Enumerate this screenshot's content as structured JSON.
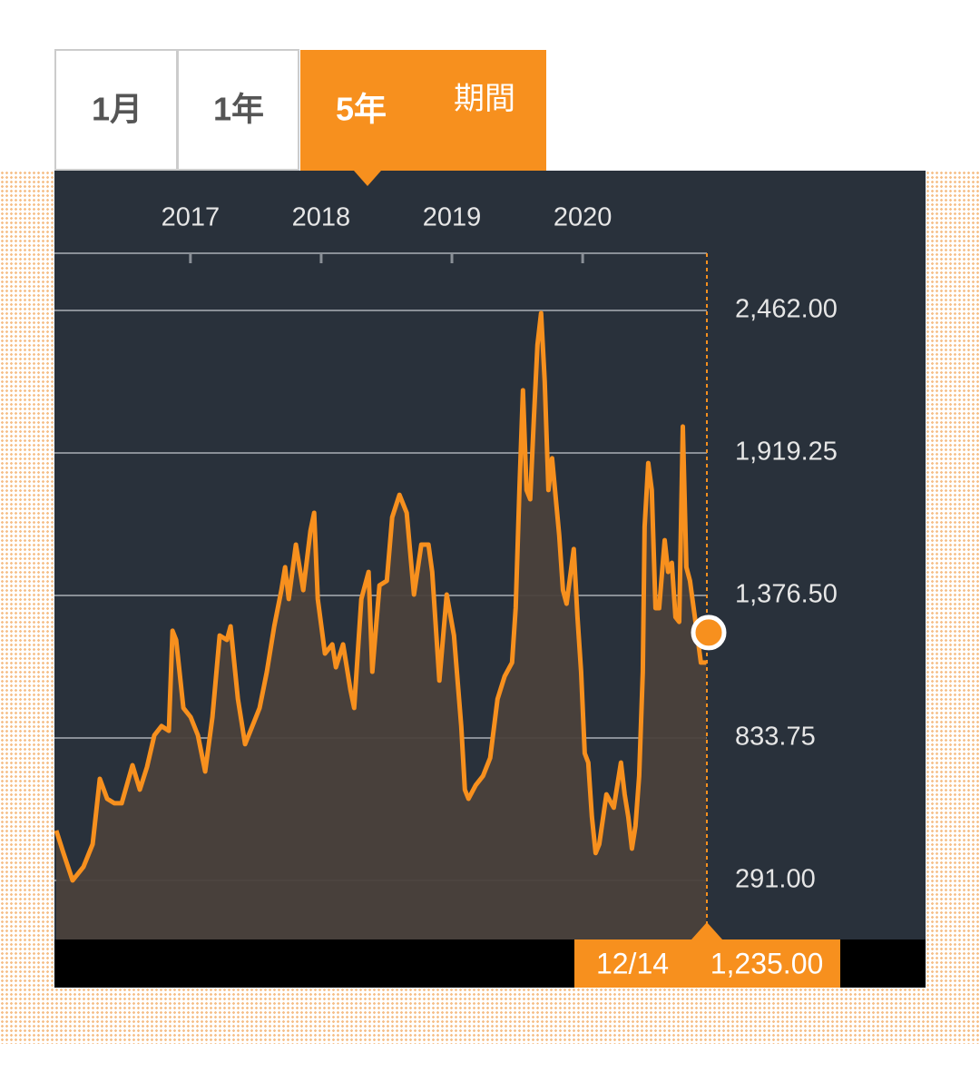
{
  "tabs": [
    "1月",
    "1年",
    "5年",
    "期間"
  ],
  "chart_data": {
    "type": "area",
    "xlim": [
      2015.96,
      2020.95
    ],
    "xticks": [
      2017,
      2018,
      2019,
      2020
    ],
    "ylim": [
      66,
      2680
    ],
    "yticks": [
      {
        "value": 291,
        "label": "291.00"
      },
      {
        "value": 833.75,
        "label": "833.75"
      },
      {
        "value": 1376.5,
        "label": "1,376.50"
      },
      {
        "value": 1919.25,
        "label": "1,919.25"
      },
      {
        "value": 2462,
        "label": "2,462.00"
      }
    ],
    "grid": true,
    "color": "#f7901e",
    "x": [
      2015.974,
      2016.029,
      2016.099,
      2016.182,
      2016.252,
      2016.307,
      2016.363,
      2016.418,
      2016.474,
      2016.557,
      2016.613,
      2016.668,
      2016.724,
      2016.779,
      2016.835,
      2016.863,
      2016.891,
      2016.946,
      2017.002,
      2017.057,
      2017.113,
      2017.168,
      2017.224,
      2017.279,
      2017.307,
      2017.363,
      2017.418,
      2017.474,
      2017.529,
      2017.585,
      2017.641,
      2017.696,
      2017.724,
      2017.752,
      2017.807,
      2017.863,
      2017.918,
      2017.946,
      2017.974,
      2018.029,
      2018.085,
      2018.113,
      2018.168,
      2018.224,
      2018.252,
      2018.307,
      2018.363,
      2018.391,
      2018.446,
      2018.502,
      2018.543,
      2018.599,
      2018.654,
      2018.71,
      2018.766,
      2018.821,
      2018.849,
      2018.904,
      2018.96,
      2019.016,
      2019.071,
      2019.099,
      2019.127,
      2019.182,
      2019.238,
      2019.293,
      2019.349,
      2019.404,
      2019.46,
      2019.488,
      2019.516,
      2019.543,
      2019.571,
      2019.599,
      2019.627,
      2019.654,
      2019.682,
      2019.71,
      2019.738,
      2019.766,
      2019.821,
      2019.849,
      2019.877,
      2019.932,
      2019.96,
      2019.988,
      2020.016,
      2020.043,
      2020.071,
      2020.099,
      2020.127,
      2020.182,
      2020.238,
      2020.293,
      2020.321,
      2020.349,
      2020.377,
      2020.404,
      2020.432,
      2020.46,
      2020.474,
      2020.502,
      2020.529,
      2020.557,
      2020.585,
      2020.627,
      2020.654,
      2020.682,
      2020.71,
      2020.738,
      2020.766,
      2020.793,
      2020.821,
      2020.877,
      2020.904,
      2020.946
    ],
    "values": [
      481,
      395,
      291,
      343,
      429,
      678,
      602,
      585,
      585,
      730,
      637,
      723,
      844,
      879,
      861,
      1242,
      1207,
      948,
      913,
      844,
      706,
      913,
      1224,
      1207,
      1259,
      982,
      810,
      879,
      948,
      1086,
      1259,
      1397,
      1484,
      1363,
      1570,
      1397,
      1622,
      1691,
      1363,
      1155,
      1190,
      1103,
      1190,
      1017,
      948,
      1363,
      1466,
      1086,
      1415,
      1432,
      1674,
      1760,
      1691,
      1380,
      1570,
      1570,
      1466,
      1052,
      1380,
      1224,
      879,
      637,
      602,
      654,
      689,
      758,
      982,
      1069,
      1121,
      1328,
      1778,
      2158,
      1778,
      1743,
      2054,
      2331,
      2452,
      2192,
      1778,
      1899,
      1605,
      1397,
      1345,
      1553,
      1294,
      1086,
      775,
      740,
      533,
      395,
      429,
      619,
      568,
      740,
      619,
      533,
      412,
      498,
      689,
      1086,
      1639,
      1881,
      1778,
      1328,
      1328,
      1587,
      1466,
      1501,
      1294,
      1276,
      2020,
      1484,
      1432,
      1224,
      1121,
      1121
    ],
    "current": {
      "x_label": "12/14",
      "value": 1235,
      "value_label": "1,235.00"
    }
  }
}
